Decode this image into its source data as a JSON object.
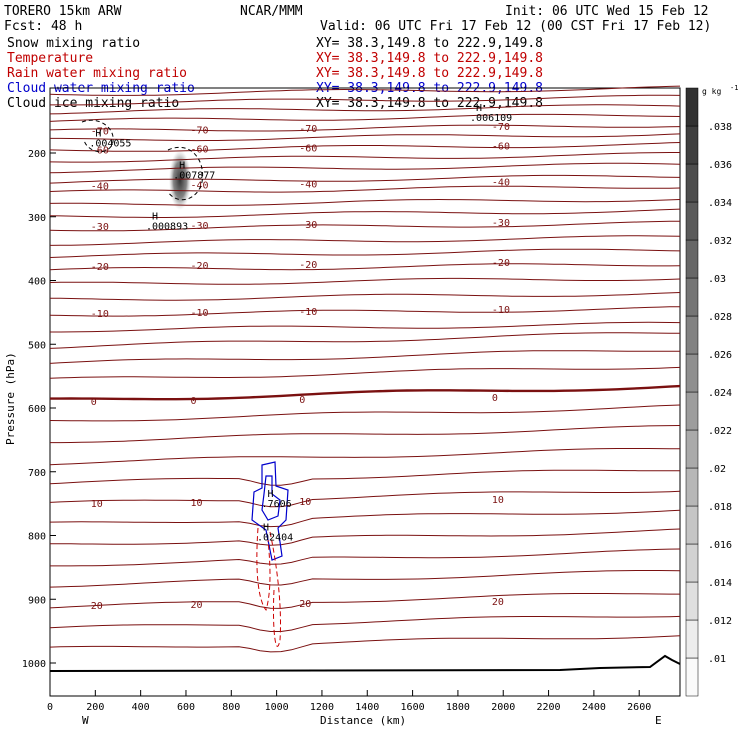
{
  "header": {
    "model_line": "TORERO  15km ARW",
    "org": "NCAR/MMM",
    "init": "Init: 06 UTC Wed 15 Feb 12",
    "fcst": "Fcst:   48 h",
    "valid": "Valid: 06 UTC Fri 17 Feb 12 (00 CST Fri 17 Feb 12)",
    "fields": [
      {
        "name": "Snow mixing ratio",
        "xy": "XY=  38.3,149.8 to 222.9,149.8",
        "color": "#000000"
      },
      {
        "name": "Temperature",
        "xy": "XY=  38.3,149.8 to 222.9,149.8",
        "color": "#c00000"
      },
      {
        "name": "Rain water mixing ratio",
        "xy": "XY=  38.3,149.8 to 222.9,149.8",
        "color": "#c00000"
      },
      {
        "name": "Cloud water mixing ratio",
        "xy": "XY=  38.3,149.8 to 222.9,149.8",
        "color": "#0000cc"
      },
      {
        "name": "Cloud ice mixing ratio",
        "xy": "XY=  38.3,149.8 to 222.9,149.8",
        "color": "#000000"
      }
    ]
  },
  "chart_data": {
    "type": "contour-cross-section",
    "xlabel": "Distance (km)",
    "ylabel": "Pressure (hPa)",
    "x_ticks": [
      0,
      200,
      400,
      600,
      800,
      1000,
      1200,
      1400,
      1600,
      1800,
      2000,
      2200,
      2400,
      2600
    ],
    "xlim": [
      0,
      2780
    ],
    "y_ticks": [
      200,
      300,
      400,
      500,
      600,
      700,
      800,
      900,
      1000
    ],
    "ylim": [
      120,
      1050
    ],
    "left_end": "W",
    "right_end": "E",
    "colorbar": {
      "unit": "g kg",
      "unit_exp": "-1",
      "ticks": [
        ".01",
        ".012",
        ".014",
        ".016",
        ".018",
        ".02",
        ".022",
        ".024",
        ".026",
        ".028",
        ".03",
        ".032",
        ".034",
        ".036",
        ".038"
      ]
    },
    "temperature_isotherms": [
      {
        "label": "-70",
        "p": 165
      },
      {
        "label": "-60",
        "p": 195
      },
      {
        "label": "-40",
        "p": 252
      },
      {
        "label": "-30",
        "p": 315
      },
      {
        "label": "-20",
        "p": 378
      },
      {
        "label": "-10",
        "p": 452
      },
      {
        "label": "0",
        "p": 590
      },
      {
        "label": "10",
        "p": 750
      },
      {
        "label": "20",
        "p": 910
      }
    ],
    "maxima": [
      {
        "label": "H",
        "value": ".004055",
        "x": 200,
        "p": 190
      },
      {
        "label": "H",
        "value": ".007877",
        "x": 570,
        "p": 240
      },
      {
        "label": "H",
        "value": ".000893",
        "x": 450,
        "p": 320
      },
      {
        "label": "H",
        "value": ".006109",
        "x": 1880,
        "p": 150
      },
      {
        "label": "H",
        "value": ".7606",
        "x": 960,
        "p": 755
      },
      {
        "label": "H",
        "value": ".02404",
        "x": 940,
        "p": 808
      }
    ]
  }
}
